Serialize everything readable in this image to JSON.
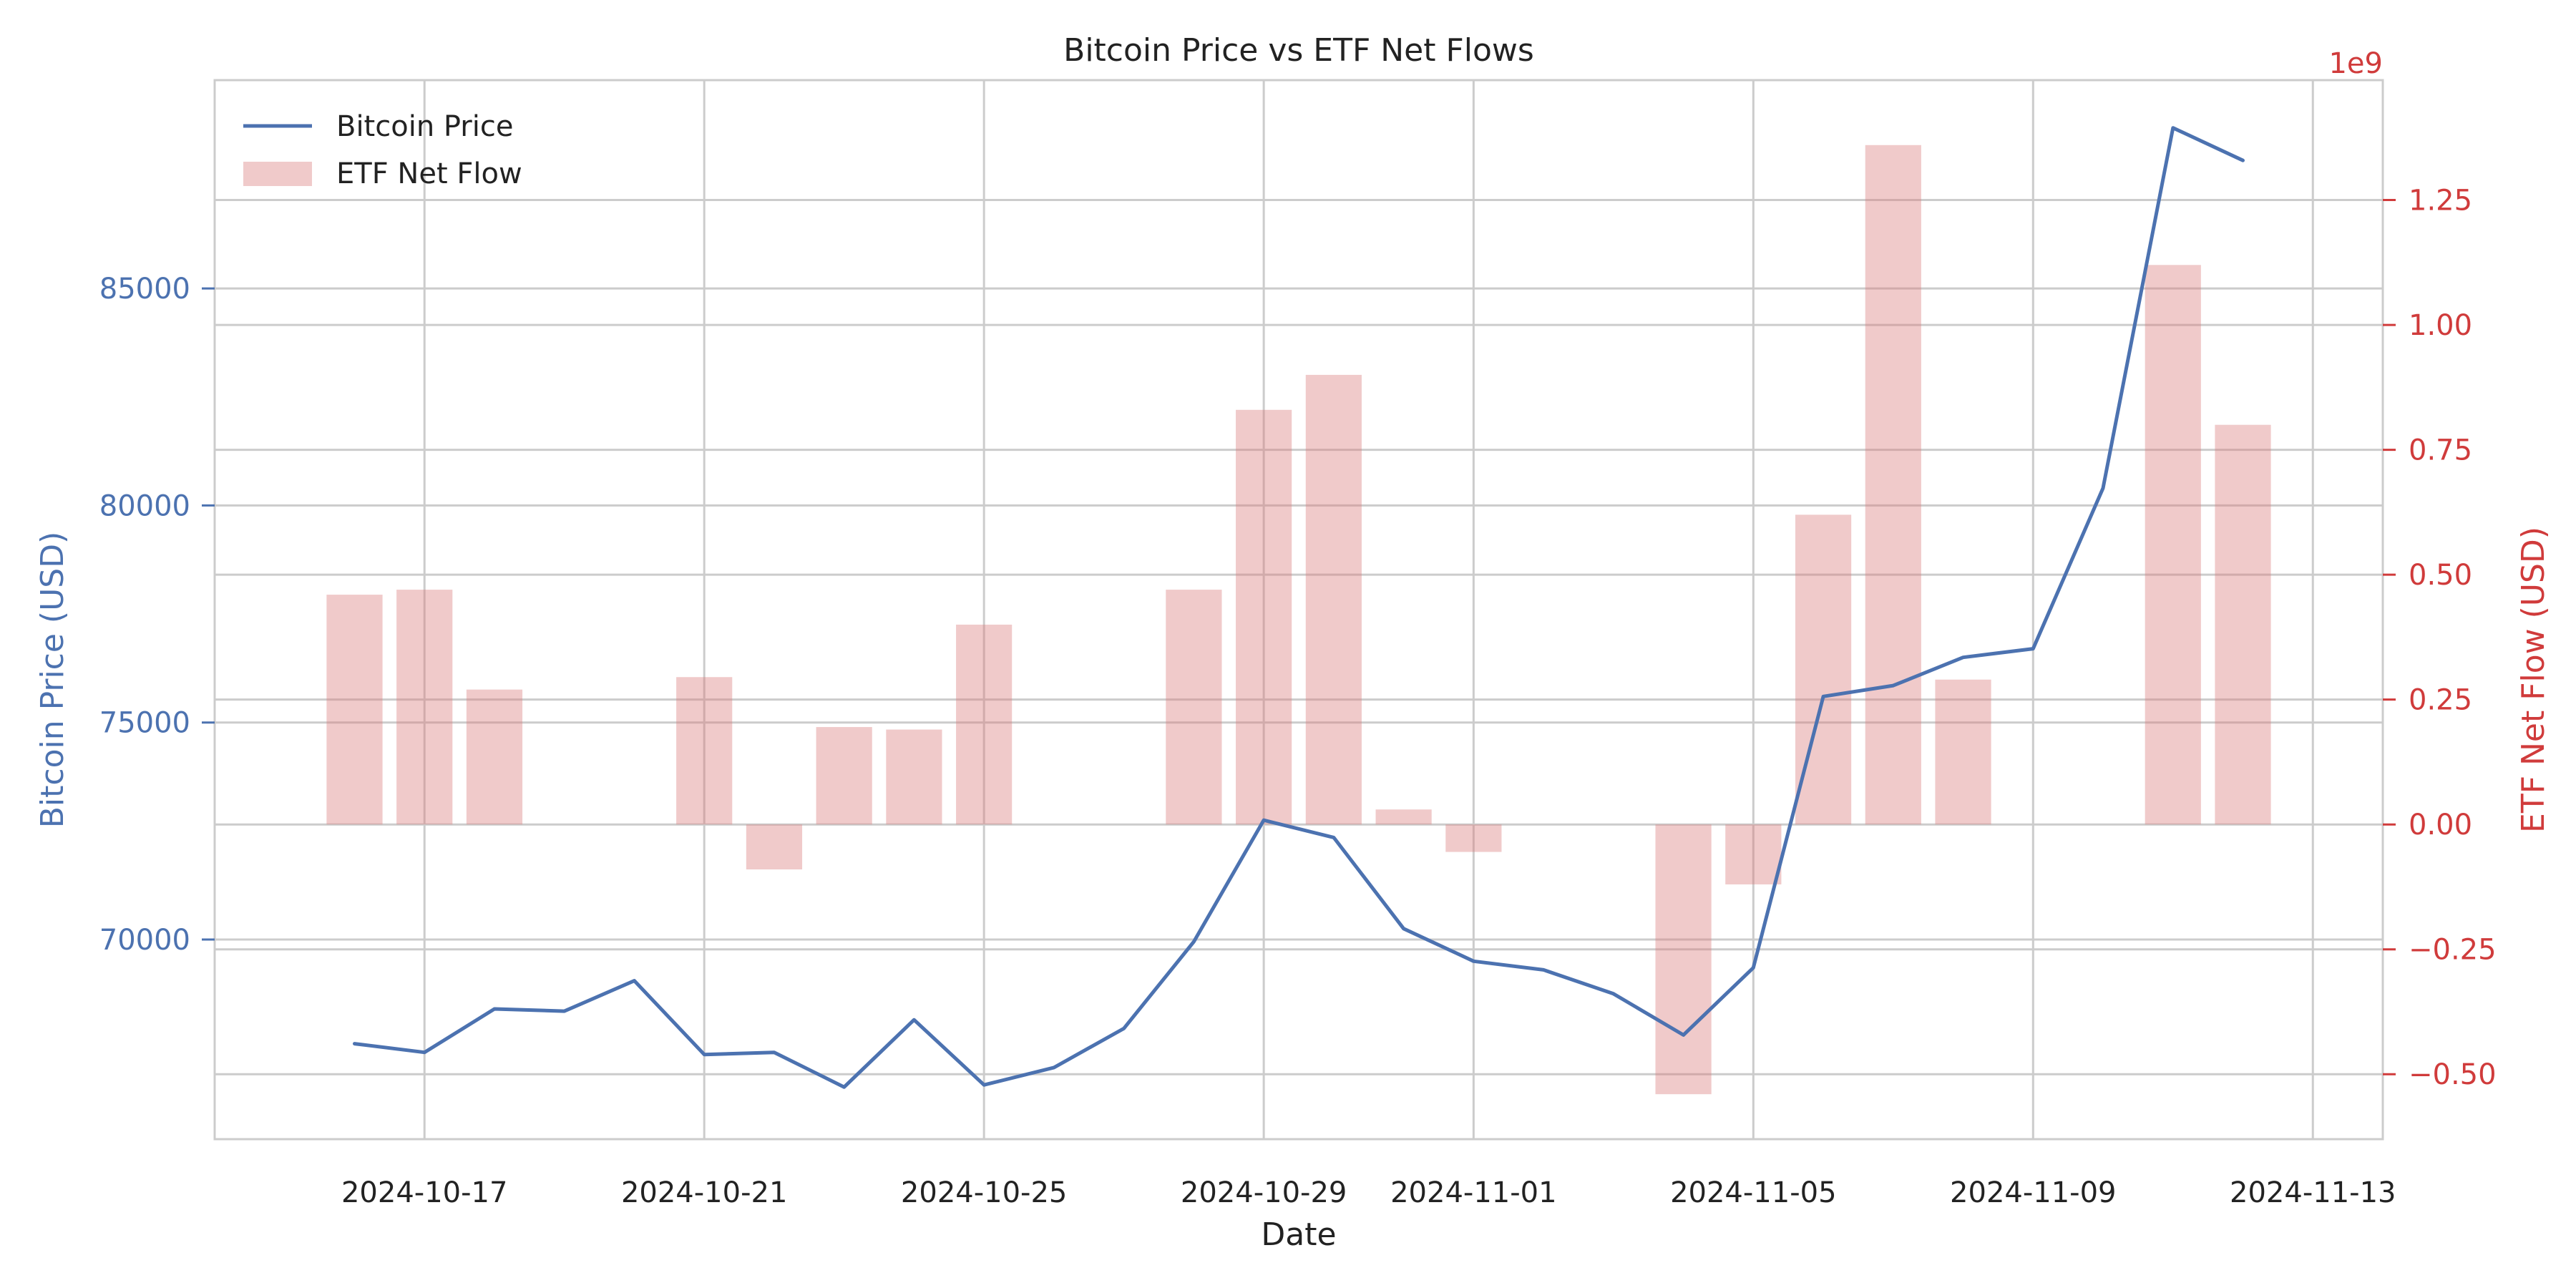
{
  "chart_data": {
    "type": "bar+line",
    "title": "Bitcoin Price vs ETF Net Flows",
    "xlabel": "Date",
    "ylabel_left": "Bitcoin Price (USD)",
    "ylabel_right": "ETF Net Flow (USD)",
    "right_axis_offset_label": "1e9",
    "x_ticks": [
      "2024-10-17",
      "2024-10-21",
      "2024-10-25",
      "2024-10-29",
      "2024-11-01",
      "2024-11-05",
      "2024-11-09",
      "2024-11-13"
    ],
    "y_left_ticks": [
      "70000",
      "75000",
      "80000",
      "85000"
    ],
    "y_right_ticks": [
      "−0.50",
      "−0.25",
      "0.00",
      "0.25",
      "0.50",
      "0.75",
      "1.00",
      "1.25"
    ],
    "ylim_left": [
      65400,
      89800
    ],
    "ylim_right": [
      -0.63,
      1.49
    ],
    "xlim": [
      "2024-10-14",
      "2024-11-14"
    ],
    "grid": true,
    "legend_position": "top-left",
    "colors": {
      "price": "#4c72b0",
      "flow": "#d97b7b",
      "flow_axis": "#d03b3b",
      "grid": "#cccccc"
    },
    "series": [
      {
        "name": "Bitcoin Price",
        "kind": "line",
        "axis": "left",
        "x": [
          "2024-10-16",
          "2024-10-17",
          "2024-10-18",
          "2024-10-19",
          "2024-10-20",
          "2024-10-21",
          "2024-10-22",
          "2024-10-23",
          "2024-10-24",
          "2024-10-25",
          "2024-10-26",
          "2024-10-27",
          "2024-10-28",
          "2024-10-29",
          "2024-10-30",
          "2024-10-31",
          "2024-11-01",
          "2024-11-02",
          "2024-11-03",
          "2024-11-04",
          "2024-11-05",
          "2024-11-06",
          "2024-11-07",
          "2024-11-08",
          "2024-11-09",
          "2024-11-10",
          "2024-11-11",
          "2024-11-12"
        ],
        "values": [
          67600,
          67400,
          68400,
          68350,
          69050,
          67350,
          67400,
          66600,
          68150,
          66650,
          67050,
          67950,
          69950,
          72750,
          72350,
          70250,
          69500,
          69300,
          68750,
          67800,
          69350,
          75600,
          75850,
          76500,
          76700,
          80400,
          88700,
          87950
        ]
      },
      {
        "name": "ETF Net Flow",
        "kind": "bar",
        "axis": "right",
        "unit": "USD (x1e9)",
        "x": [
          "2024-10-16",
          "2024-10-17",
          "2024-10-18",
          "2024-10-21",
          "2024-10-22",
          "2024-10-23",
          "2024-10-24",
          "2024-10-25",
          "2024-10-28",
          "2024-10-29",
          "2024-10-30",
          "2024-10-31",
          "2024-11-01",
          "2024-11-04",
          "2024-11-05",
          "2024-11-06",
          "2024-11-07",
          "2024-11-08",
          "2024-11-11",
          "2024-11-12"
        ],
        "values": [
          0.46,
          0.47,
          0.27,
          0.295,
          -0.09,
          0.195,
          0.19,
          0.4,
          0.47,
          0.83,
          0.9,
          0.03,
          -0.055,
          -0.54,
          -0.12,
          0.62,
          1.36,
          0.29,
          1.12,
          0.8
        ]
      }
    ]
  }
}
